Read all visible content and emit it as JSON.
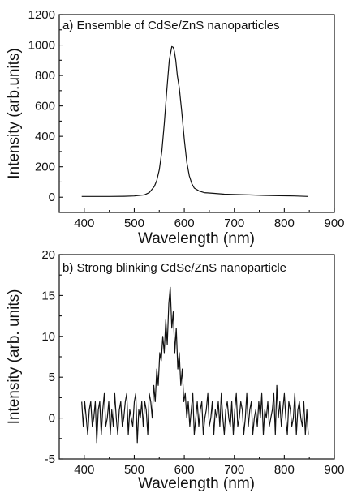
{
  "chart_data": [
    {
      "type": "line",
      "title": "a) Ensemble of CdSe/ZnS nanoparticles",
      "xlabel": "Wavelength (nm)",
      "ylabel": "Intensity (arb.units)",
      "xlim": [
        350,
        900
      ],
      "ylim": [
        -100,
        1200
      ],
      "xticks": [
        "400",
        "500",
        "600",
        "700",
        "800",
        "900"
      ],
      "yticks": [
        "0",
        "200",
        "400",
        "600",
        "800",
        "1000",
        "1200"
      ],
      "series": [
        {
          "x": [
            395,
            420,
            450,
            480,
            500,
            520,
            530,
            540,
            545,
            550,
            555,
            560,
            565,
            570,
            575,
            578,
            580,
            583,
            586,
            590,
            595,
            600,
            605,
            610,
            615,
            620,
            630,
            640,
            660,
            680,
            700,
            730,
            760,
            790,
            820,
            848
          ],
          "y": [
            5,
            5,
            5,
            6,
            8,
            15,
            30,
            70,
            110,
            180,
            300,
            480,
            700,
            900,
            990,
            985,
            960,
            900,
            800,
            720,
            560,
            380,
            230,
            140,
            90,
            60,
            40,
            30,
            25,
            20,
            18,
            15,
            12,
            10,
            8,
            5
          ]
        }
      ]
    },
    {
      "type": "line",
      "title": "b) Strong blinking CdSe/ZnS nanoparticle",
      "xlabel": "Wavelength (nm)",
      "ylabel": "Intensity (arb. units)",
      "xlim": [
        350,
        900
      ],
      "ylim": [
        -5,
        20
      ],
      "xticks": [
        "400",
        "500",
        "600",
        "700",
        "800",
        "900"
      ],
      "yticks": [
        "-5",
        "0",
        "5",
        "10",
        "15",
        "20"
      ],
      "series": [
        {
          "x": [
            395,
            398,
            401,
            404,
            407,
            410,
            413,
            416,
            419,
            422,
            425,
            428,
            431,
            434,
            437,
            440,
            443,
            446,
            449,
            452,
            455,
            458,
            461,
            464,
            467,
            470,
            473,
            476,
            479,
            482,
            485,
            488,
            491,
            494,
            497,
            500,
            503,
            506,
            509,
            512,
            515,
            518,
            521,
            524,
            527,
            530,
            533,
            536,
            539,
            542,
            545,
            548,
            551,
            554,
            557,
            560,
            563,
            566,
            569,
            572,
            575,
            578,
            581,
            584,
            587,
            590,
            593,
            596,
            599,
            602,
            605,
            608,
            611,
            614,
            617,
            620,
            623,
            626,
            629,
            632,
            635,
            638,
            641,
            644,
            647,
            650,
            653,
            656,
            659,
            662,
            665,
            668,
            671,
            674,
            677,
            680,
            683,
            686,
            689,
            692,
            695,
            698,
            701,
            704,
            707,
            710,
            713,
            716,
            719,
            722,
            725,
            728,
            731,
            734,
            737,
            740,
            743,
            746,
            749,
            752,
            755,
            758,
            761,
            764,
            767,
            770,
            773,
            776,
            779,
            782,
            785,
            788,
            791,
            794,
            797,
            800,
            803,
            806,
            809,
            812,
            815,
            818,
            821,
            824,
            827,
            830,
            833,
            836,
            839,
            842,
            845,
            848
          ],
          "y": [
            2,
            -1,
            2,
            0,
            -2,
            1,
            2,
            -1,
            0,
            2,
            -3,
            1,
            2,
            -2,
            1,
            3,
            -1,
            0,
            2,
            -2,
            1,
            -1,
            3,
            0,
            -2,
            1,
            2,
            -1,
            0,
            2,
            3,
            -2,
            1,
            0,
            -1,
            2,
            3,
            -3,
            1,
            0,
            2,
            -1,
            2,
            1,
            -2,
            3,
            2,
            0,
            4,
            2,
            6,
            4,
            8,
            7,
            10,
            8,
            12,
            9,
            14,
            16,
            11,
            13,
            8,
            11,
            6,
            8,
            4,
            6,
            2,
            3,
            0,
            2,
            -1,
            1,
            3,
            -2,
            0,
            2,
            -1,
            1,
            2,
            -2,
            0,
            1,
            3,
            -1,
            0,
            2,
            -2,
            1,
            0,
            2,
            -1,
            3,
            0,
            -2,
            1,
            2,
            0,
            -1,
            2,
            -2,
            1,
            3,
            -1,
            0,
            2,
            1,
            -2,
            0,
            3,
            -1,
            1,
            2,
            -2,
            0,
            1,
            -1,
            2,
            0,
            3,
            -2,
            1,
            0,
            2,
            -1,
            0,
            1,
            3,
            -2,
            4,
            0,
            2,
            -1,
            1,
            3,
            0,
            -2,
            2,
            1,
            -1,
            0,
            3,
            -2,
            1,
            2,
            0,
            -1,
            2,
            -2,
            1,
            -2
          ]
        }
      ]
    }
  ]
}
